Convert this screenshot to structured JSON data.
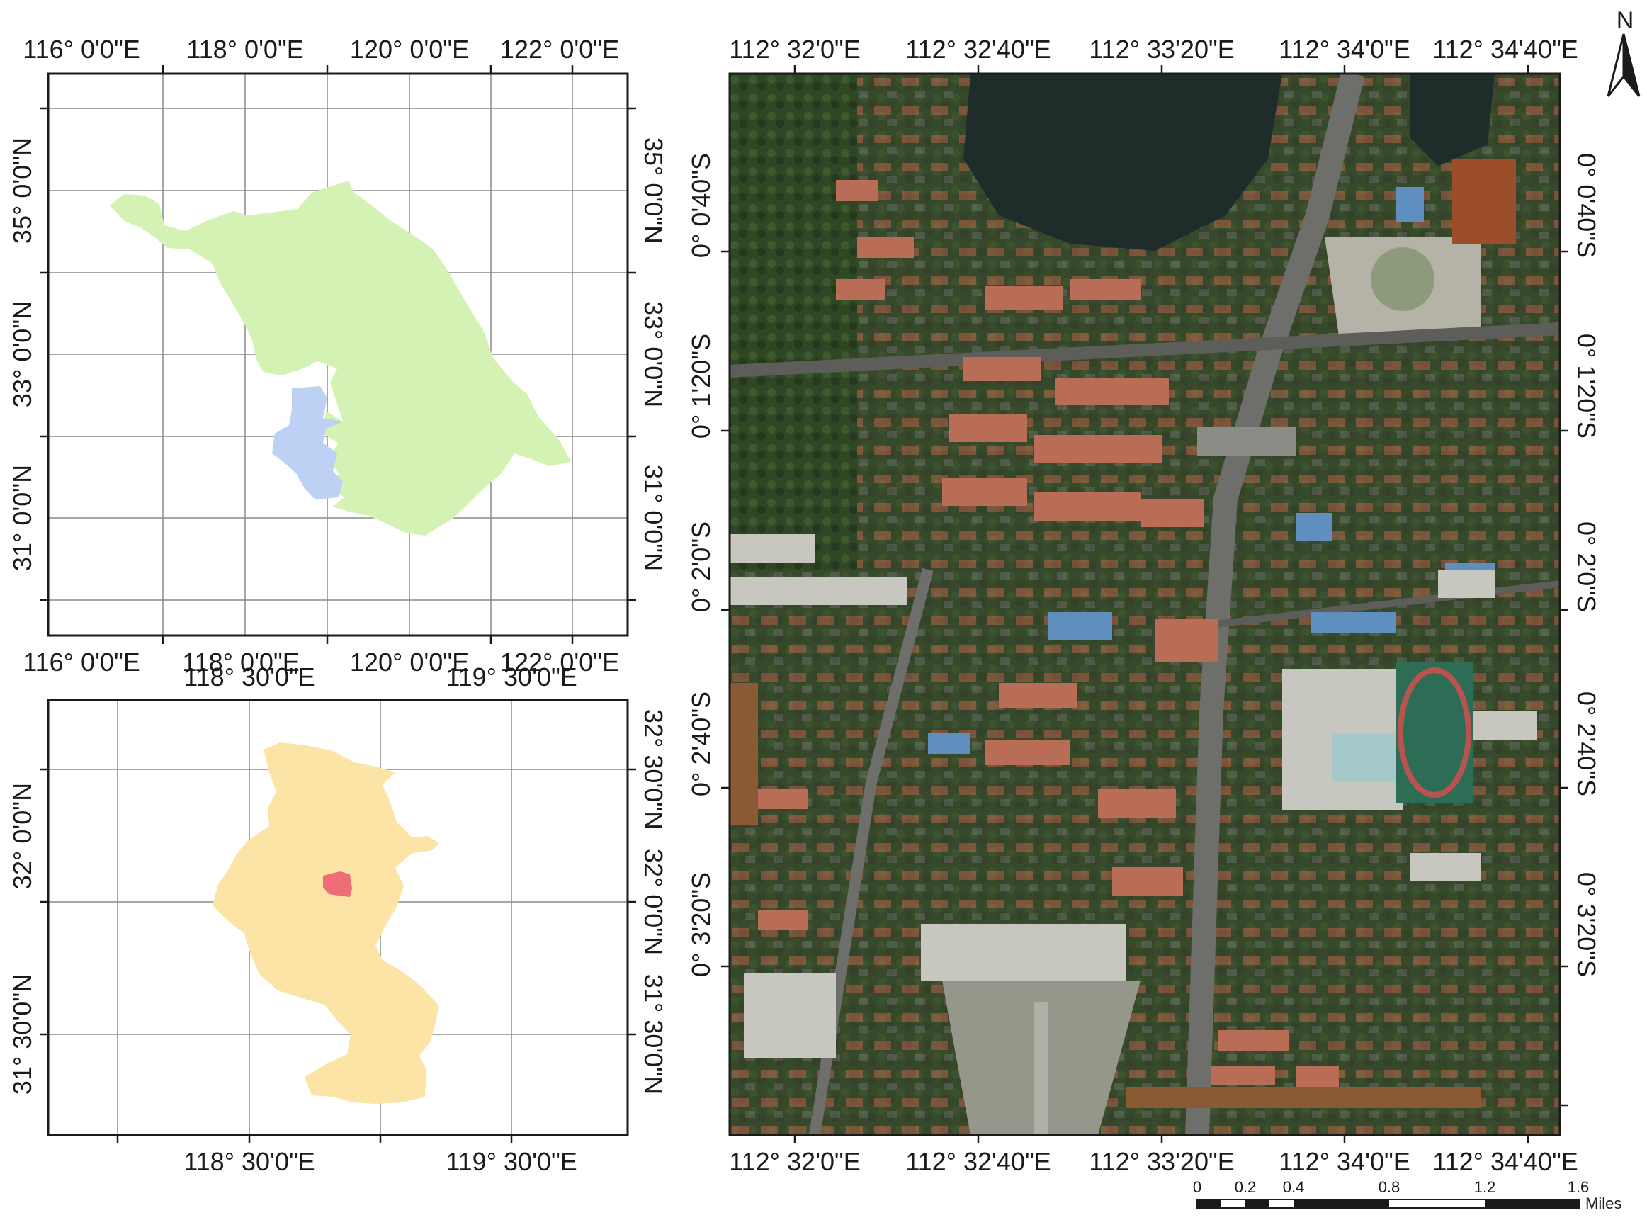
{
  "panel_province": {
    "top_labels": [
      "116° 0'0\"E",
      "118° 0'0\"E",
      "120° 0'0\"E",
      "122° 0'0\"E"
    ],
    "bottom_labels": [
      "116° 0'0\"E",
      "118° 0'0\"E",
      "120° 0'0\"E",
      "122° 0'0\"E"
    ],
    "left_labels": [
      "35° 0'0\"N",
      "33° 0'0\"N",
      "31° 0'0\"N"
    ],
    "right_labels": [
      "35° 0'0\"N",
      "33° 0'0\"N",
      "31° 0'0\"N"
    ],
    "province_color": "#d3f2b3",
    "city_color": "#bdd1f5"
  },
  "panel_city": {
    "top_labels": [
      "118° 30'0\"E",
      "119° 30'0\"E"
    ],
    "bottom_labels": [
      "118° 30'0\"E",
      "119° 30'0\"E"
    ],
    "left_labels": [
      "32° 0'0\"N",
      "31° 30'0\"N"
    ],
    "right_labels": [
      "32° 30'0\"N",
      "32° 0'0\"N",
      "31° 30'0\"N"
    ],
    "city_color": "#fce4a6",
    "study_area_color": "#ee6d77"
  },
  "panel_imagery": {
    "top_labels": [
      "112° 32'0\"E",
      "112° 32'40\"E",
      "112° 33'20\"E",
      "112° 34'0\"E",
      "112° 34'40\"E"
    ],
    "bottom_labels": [
      "112° 32'0\"E",
      "112° 32'40\"E",
      "112° 33'20\"E",
      "112° 34'0\"E",
      "112° 34'40\"E"
    ],
    "left_labels": [
      "0° 0'40\"S",
      "0° 1'20\"S",
      "0° 2'0\"S",
      "0° 2'40\"S",
      "0° 3'20\"S"
    ],
    "right_labels": [
      "0° 0'40\"S",
      "0° 1'20\"S",
      "0° 2'0\"S",
      "0° 2'40\"S",
      "0° 3'20\"S"
    ]
  },
  "north_arrow": {
    "label": "N"
  },
  "scale_bar": {
    "ticks": [
      "0",
      "0.2",
      "0.4",
      "0.8",
      "1.2",
      "1.6"
    ],
    "unit": "Miles"
  }
}
